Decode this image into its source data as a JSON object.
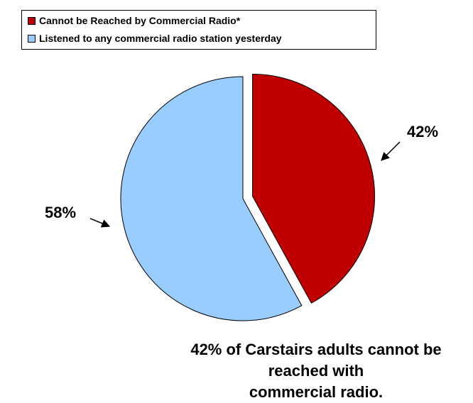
{
  "chart_data": {
    "type": "pie",
    "slices": [
      {
        "label": "Cannot be Reached by Commercial Radio*",
        "value": 42,
        "display": "42%",
        "color": "#C00000",
        "exploded": true
      },
      {
        "label": "Listened to any commercial radio station yesterday",
        "value": 58,
        "display": "58%",
        "color": "#99CCFF",
        "exploded": false
      }
    ],
    "legend_position": "top-left"
  },
  "caption": {
    "line1": "42% of Carstairs adults cannot be reached with",
    "line2": "commercial radio."
  }
}
